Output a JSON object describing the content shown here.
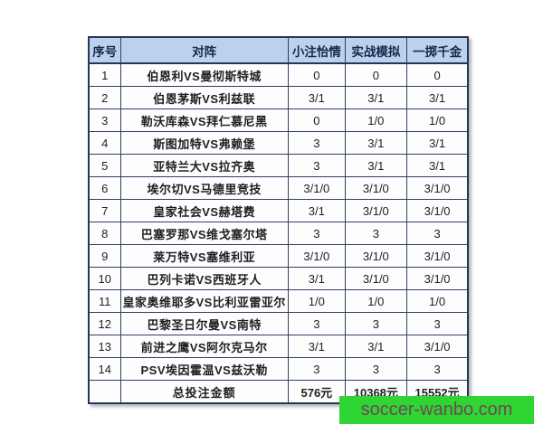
{
  "colors": {
    "header_bg": "#bcd2ec",
    "header_text": "#152a4e",
    "border": "#2e3f63",
    "outer_border": "#24365c",
    "banner_bg": "#2ed533",
    "banner_text": "#6d4953"
  },
  "table": {
    "headers": [
      "序号",
      "对阵",
      "小注怡情",
      "实战模拟",
      "一掷千金"
    ],
    "rows": [
      {
        "no": "1",
        "match": "伯恩利VS曼彻斯特城",
        "small": "0",
        "sim": "0",
        "big": "0"
      },
      {
        "no": "2",
        "match": "伯恩茅斯VS利兹联",
        "small": "3/1",
        "sim": "3/1",
        "big": "3/1"
      },
      {
        "no": "3",
        "match": "勒沃库森VS拜仁慕尼黑",
        "small": "0",
        "sim": "1/0",
        "big": "1/0"
      },
      {
        "no": "4",
        "match": "斯图加特VS弗赖堡",
        "small": "3",
        "sim": "3/1",
        "big": "3/1"
      },
      {
        "no": "5",
        "match": "亚特兰大VS拉齐奥",
        "small": "3",
        "sim": "3/1",
        "big": "3/1"
      },
      {
        "no": "6",
        "match": "埃尔切VS马德里竞技",
        "small": "3/1/0",
        "sim": "3/1/0",
        "big": "3/1/0"
      },
      {
        "no": "7",
        "match": "皇家社会VS赫塔费",
        "small": "3/1",
        "sim": "3/1/0",
        "big": "3/1/0"
      },
      {
        "no": "8",
        "match": "巴塞罗那VS维戈塞尔塔",
        "small": "3",
        "sim": "3",
        "big": "3"
      },
      {
        "no": "9",
        "match": "莱万特VS塞维利亚",
        "small": "3/1/0",
        "sim": "3/1/0",
        "big": "3/1/0"
      },
      {
        "no": "10",
        "match": "巴列卡诺VS西班牙人",
        "small": "3/1",
        "sim": "3/1/0",
        "big": "3/1/0"
      },
      {
        "no": "11",
        "match": "皇家奥维耶多VS比利亚雷亚尔",
        "small": "1/0",
        "sim": "1/0",
        "big": "1/0"
      },
      {
        "no": "12",
        "match": "巴黎圣日尔曼VS南特",
        "small": "3",
        "sim": "3",
        "big": "3"
      },
      {
        "no": "13",
        "match": "前进之鹰VS阿尔克马尔",
        "small": "3/1",
        "sim": "3/1",
        "big": "3/1/0"
      },
      {
        "no": "14",
        "match": "PSV埃因霍温VS兹沃勒",
        "small": "3",
        "sim": "3",
        "big": "3"
      }
    ],
    "footer": {
      "no": "",
      "label": "总投注金额",
      "small": "576元",
      "sim": "10368元",
      "big": "15552元"
    }
  },
  "banner": {
    "text": "soccer-wanbo.com"
  },
  "chart_data": {
    "type": "table",
    "title": "",
    "columns": [
      "序号",
      "对阵",
      "小注怡情",
      "实战模拟",
      "一掷千金"
    ],
    "rows": [
      [
        "1",
        "伯恩利VS曼彻斯特城",
        "0",
        "0",
        "0"
      ],
      [
        "2",
        "伯恩茅斯VS利兹联",
        "3/1",
        "3/1",
        "3/1"
      ],
      [
        "3",
        "勒沃库森VS拜仁慕尼黑",
        "0",
        "1/0",
        "1/0"
      ],
      [
        "4",
        "斯图加特VS弗赖堡",
        "3",
        "3/1",
        "3/1"
      ],
      [
        "5",
        "亚特兰大VS拉齐奥",
        "3",
        "3/1",
        "3/1"
      ],
      [
        "6",
        "埃尔切VS马德里竞技",
        "3/1/0",
        "3/1/0",
        "3/1/0"
      ],
      [
        "7",
        "皇家社会VS赫塔费",
        "3/1",
        "3/1/0",
        "3/1/0"
      ],
      [
        "8",
        "巴塞罗那VS维戈塞尔塔",
        "3",
        "3",
        "3"
      ],
      [
        "9",
        "莱万特VS塞维利亚",
        "3/1/0",
        "3/1/0",
        "3/1/0"
      ],
      [
        "10",
        "巴列卡诺VS西班牙人",
        "3/1",
        "3/1/0",
        "3/1/0"
      ],
      [
        "11",
        "皇家奥维耶多VS比利亚雷亚尔",
        "1/0",
        "1/0",
        "1/0"
      ],
      [
        "12",
        "巴黎圣日尔曼VS南特",
        "3",
        "3",
        "3"
      ],
      [
        "13",
        "前进之鹰VS阿尔克马尔",
        "3/1",
        "3/1",
        "3/1/0"
      ],
      [
        "14",
        "PSV埃因霍温VS兹沃勒",
        "3",
        "3",
        "3"
      ],
      [
        "",
        "总投注金额",
        "576元",
        "10368元",
        "15552元"
      ]
    ]
  }
}
